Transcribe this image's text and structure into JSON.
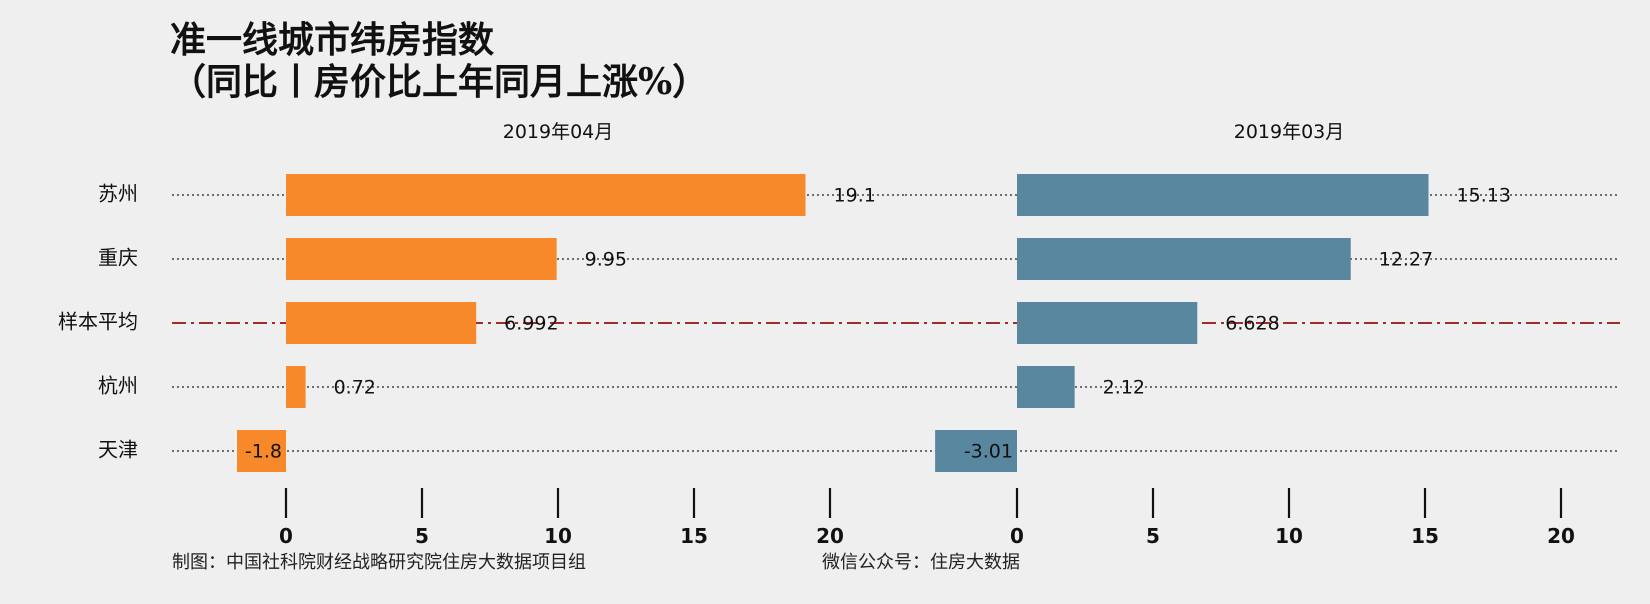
{
  "chart_data": {
    "type": "bar",
    "orientation": "horizontal",
    "title": "准一线城市纬房指数",
    "subtitle": "（同比丨房价比上年同月上涨%）",
    "categories": [
      "苏州",
      "重庆",
      "样本平均",
      "杭州",
      "天津"
    ],
    "reference_category": "样本平均",
    "xlim": [
      -2,
      21
    ],
    "xticks": [
      0,
      5,
      10,
      15,
      20
    ],
    "grid": "dotted horizontal lines per category",
    "panels": [
      {
        "name": "2019年04月",
        "color": "#f7892b",
        "values": [
          19.1,
          9.95,
          6.992,
          0.72,
          -1.8
        ],
        "labels": [
          "19.1",
          "9.95",
          "6.992",
          "0.72",
          "-1.8"
        ]
      },
      {
        "name": "2019年03月",
        "color": "#5a87a0",
        "values": [
          15.13,
          12.27,
          6.628,
          2.12,
          -3.01
        ],
        "labels": [
          "15.13",
          "12.27",
          "6.628",
          "2.12",
          "-3.01"
        ]
      }
    ],
    "reference_line_color": "#a42a2a"
  },
  "caption": {
    "left": "制图：中国社科院财经战略研究院住房大数据项目组",
    "right": "微信公众号：住房大数据"
  }
}
